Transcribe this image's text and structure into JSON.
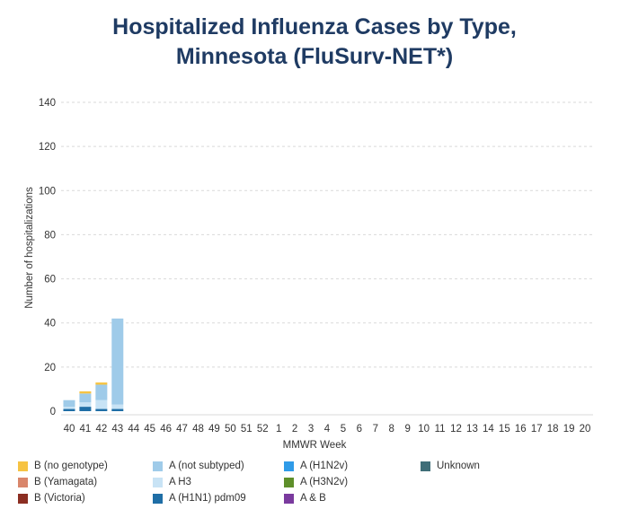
{
  "chart_data": {
    "type": "bar",
    "stacked": true,
    "title": [
      "Hospitalized Influenza Cases by Type,",
      "Minnesota (FluSurv-NET*)"
    ],
    "xlabel": "MMWR Week",
    "ylabel": "Number of hospitalizations",
    "ylim": [
      0,
      140
    ],
    "yticks": [
      0,
      20,
      40,
      60,
      80,
      100,
      120,
      140
    ],
    "grid": true,
    "legend_position": "bottom",
    "categories": [
      "40",
      "41",
      "42",
      "43",
      "44",
      "45",
      "46",
      "47",
      "48",
      "49",
      "50",
      "51",
      "52",
      "1",
      "2",
      "3",
      "4",
      "5",
      "6",
      "7",
      "8",
      "9",
      "10",
      "11",
      "12",
      "13",
      "14",
      "15",
      "16",
      "17",
      "18",
      "19",
      "20"
    ],
    "series": [
      {
        "name": "A (H1N1) pdm09",
        "color": "#1f6ea6",
        "values": [
          1,
          2,
          1,
          1,
          0,
          0,
          0,
          0,
          0,
          0,
          0,
          0,
          0,
          0,
          0,
          0,
          0,
          0,
          0,
          0,
          0,
          0,
          0,
          0,
          0,
          0,
          0,
          0,
          0,
          0,
          0,
          0,
          0
        ]
      },
      {
        "name": "A H3",
        "color": "#c8e3f5",
        "values": [
          1,
          2,
          4,
          2,
          0,
          0,
          0,
          0,
          0,
          0,
          0,
          0,
          0,
          0,
          0,
          0,
          0,
          0,
          0,
          0,
          0,
          0,
          0,
          0,
          0,
          0,
          0,
          0,
          0,
          0,
          0,
          0,
          0
        ]
      },
      {
        "name": "A (not subtyped)",
        "color": "#9fcbe9",
        "values": [
          3,
          4,
          7,
          39,
          0,
          0,
          0,
          0,
          0,
          0,
          0,
          0,
          0,
          0,
          0,
          0,
          0,
          0,
          0,
          0,
          0,
          0,
          0,
          0,
          0,
          0,
          0,
          0,
          0,
          0,
          0,
          0,
          0
        ]
      },
      {
        "name": "B (no genotype)",
        "color": "#f6c343",
        "values": [
          0,
          1,
          1,
          0,
          0,
          0,
          0,
          0,
          0,
          0,
          0,
          0,
          0,
          0,
          0,
          0,
          0,
          0,
          0,
          0,
          0,
          0,
          0,
          0,
          0,
          0,
          0,
          0,
          0,
          0,
          0,
          0,
          0
        ]
      },
      {
        "name": "B (Yamagata)",
        "color": "#d9866b",
        "values": [
          0,
          0,
          0,
          0,
          0,
          0,
          0,
          0,
          0,
          0,
          0,
          0,
          0,
          0,
          0,
          0,
          0,
          0,
          0,
          0,
          0,
          0,
          0,
          0,
          0,
          0,
          0,
          0,
          0,
          0,
          0,
          0,
          0
        ]
      },
      {
        "name": "B (Victoria)",
        "color": "#8b2e22",
        "values": [
          0,
          0,
          0,
          0,
          0,
          0,
          0,
          0,
          0,
          0,
          0,
          0,
          0,
          0,
          0,
          0,
          0,
          0,
          0,
          0,
          0,
          0,
          0,
          0,
          0,
          0,
          0,
          0,
          0,
          0,
          0,
          0,
          0
        ]
      },
      {
        "name": "A (H1N2v)",
        "color": "#2f9be8",
        "values": [
          0,
          0,
          0,
          0,
          0,
          0,
          0,
          0,
          0,
          0,
          0,
          0,
          0,
          0,
          0,
          0,
          0,
          0,
          0,
          0,
          0,
          0,
          0,
          0,
          0,
          0,
          0,
          0,
          0,
          0,
          0,
          0,
          0
        ]
      },
      {
        "name": "A (H3N2v)",
        "color": "#5e8f2a",
        "values": [
          0,
          0,
          0,
          0,
          0,
          0,
          0,
          0,
          0,
          0,
          0,
          0,
          0,
          0,
          0,
          0,
          0,
          0,
          0,
          0,
          0,
          0,
          0,
          0,
          0,
          0,
          0,
          0,
          0,
          0,
          0,
          0,
          0
        ]
      },
      {
        "name": "A & B",
        "color": "#7a3a9e",
        "values": [
          0,
          0,
          0,
          0,
          0,
          0,
          0,
          0,
          0,
          0,
          0,
          0,
          0,
          0,
          0,
          0,
          0,
          0,
          0,
          0,
          0,
          0,
          0,
          0,
          0,
          0,
          0,
          0,
          0,
          0,
          0,
          0,
          0
        ]
      },
      {
        "name": "Unknown",
        "color": "#3f6e78",
        "values": [
          0,
          0,
          0,
          0,
          0,
          0,
          0,
          0,
          0,
          0,
          0,
          0,
          0,
          0,
          0,
          0,
          0,
          0,
          0,
          0,
          0,
          0,
          0,
          0,
          0,
          0,
          0,
          0,
          0,
          0,
          0,
          0,
          0
        ]
      }
    ],
    "legend_order": [
      [
        "B (no genotype)",
        "B (Yamagata)",
        "B (Victoria)"
      ],
      [
        "A (not subtyped)",
        "A H3",
        "A (H1N1) pdm09"
      ],
      [
        "A (H1N2v)",
        "A (H3N2v)",
        "A & B"
      ],
      [
        "Unknown"
      ]
    ]
  }
}
